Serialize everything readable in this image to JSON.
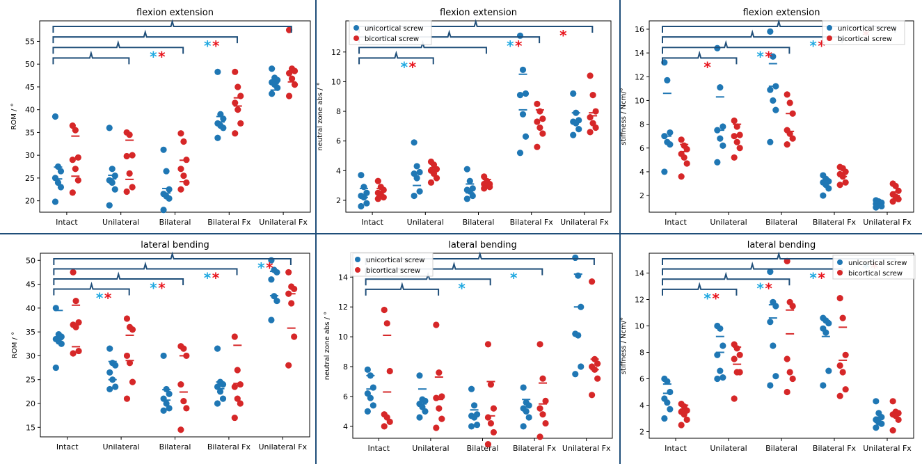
{
  "colors": {
    "unicortical": "#1f77b4",
    "bicortical": "#d62728",
    "star_cyan": "#1fa8e0",
    "star_red": "#e8141c",
    "bracket": "#1f4e79",
    "divider": "#1f4e79"
  },
  "chart_data": [
    {
      "type": "scatter",
      "title": "flexion extension",
      "ylabel": "ROM / °",
      "categories": [
        "Intact",
        "Unilateral",
        "Bilateral",
        "Bilateral Fx",
        "Unilateral Fx"
      ],
      "ylim": [
        17.5,
        59.5
      ],
      "yticks": [
        20,
        25,
        30,
        35,
        40,
        45,
        50,
        55
      ],
      "show_legend": false,
      "series": [
        {
          "name": "unicortical screw",
          "points": [
            [
              38.5,
              27.5,
              26.5,
              25,
              24,
              23,
              19.8
            ],
            [
              36,
              27,
              25.5,
              24.5,
              24,
              22.5,
              19
            ],
            [
              31.2,
              26.5,
              22.5,
              21.5,
              21,
              20.5,
              18
            ],
            [
              48.3,
              39,
              38,
              37,
              36.5,
              36,
              33.8
            ],
            [
              49,
              47,
              46.5,
              46,
              45.5,
              44.8,
              43.5
            ]
          ],
          "mean": [
            24.8,
            24.8,
            21.7,
            37.3,
            44.3
          ],
          "median": [
            27.4,
            25.6,
            22.7,
            38.5,
            45.7
          ]
        },
        {
          "name": "bicortical screw",
          "points": [
            [
              36.5,
              35.5,
              29.5,
              29,
              27,
              24.5,
              21.8
            ],
            [
              35,
              34.5,
              30,
              29.8,
              26,
              23,
              22
            ],
            [
              34.8,
              33,
              29,
              27,
              25.5,
              24,
              22.5
            ],
            [
              48.3,
              45,
              43,
              41.5,
              40,
              37,
              34.8
            ],
            [
              57.5,
              49,
              48.5,
              48,
              46.8,
              45.5,
              43
            ]
          ],
          "mean": [
            25.4,
            24.7,
            24.2,
            42.6,
            48.1
          ],
          "median": [
            34.2,
            33.3,
            28.9,
            40.8,
            46.1
          ]
        }
      ],
      "brackets": [
        {
          "from": 0,
          "to": 1,
          "stars": []
        },
        {
          "from": 0,
          "to": 2,
          "stars": [
            "cyan",
            "red"
          ]
        },
        {
          "from": 0,
          "to": 3,
          "stars": [
            "cyan",
            "red"
          ]
        },
        {
          "from": 0,
          "to": 4,
          "stars": []
        }
      ]
    },
    {
      "type": "scatter",
      "title": "flexion extension",
      "ylabel": "neutral zone abs / °",
      "categories": [
        "Intact",
        "Unilateral",
        "Bilateral",
        "Bilateral Fx",
        "Unilateral Fx"
      ],
      "ylim": [
        1.2,
        14.1
      ],
      "yticks": [
        2,
        4,
        6,
        8,
        10,
        12
      ],
      "show_legend": true,
      "legend": [
        "unicortical screw",
        "bicortical screw"
      ],
      "series": [
        {
          "name": "unicortical screw",
          "points": [
            [
              3.7,
              2.9,
              2.5,
              2.3,
              2.2,
              1.8,
              1.6
            ],
            [
              5.9,
              4.3,
              3.9,
              3.8,
              3.5,
              2.6,
              2.3
            ],
            [
              4.1,
              3.3,
              2.8,
              2.7,
              2.6,
              2.3,
              2.1
            ],
            [
              13.1,
              10.8,
              9.2,
              9.1,
              7.8,
              6.3,
              5.2
            ],
            [
              9.2,
              7.9,
              7.4,
              7.3,
              7.2,
              6.8,
              6.4
            ]
          ],
          "mean": [
            2.2,
            3.0,
            2.5,
            8.1,
            7.4
          ],
          "median": [
            2.8,
            3.8,
            3.1,
            10.5,
            7.9
          ]
        },
        {
          "name": "bicortical screw",
          "points": [
            [
              3.3,
              2.9,
              2.7,
              2.5,
              2.4,
              2.2,
              2.1
            ],
            [
              4.6,
              4.4,
              4.1,
              4.0,
              3.8,
              3.5,
              3.2
            ],
            [
              3.6,
              3.3,
              3.1,
              3.1,
              3.0,
              2.9,
              2.8
            ],
            [
              8.5,
              8.0,
              7.5,
              7.3,
              6.9,
              6.5,
              5.6
            ],
            [
              10.4,
              9.1,
              8.0,
              7.6,
              7.2,
              6.9,
              6.6
            ]
          ],
          "mean": [
            2.6,
            4.0,
            3.1,
            7.4,
            7.7
          ],
          "median": [
            2.8,
            4.2,
            3.4,
            8.1,
            7.9
          ]
        }
      ],
      "brackets": [
        {
          "from": 0,
          "to": 1,
          "stars": [
            "cyan",
            "red"
          ]
        },
        {
          "from": 0,
          "to": 2,
          "stars": []
        },
        {
          "from": 0,
          "to": 3,
          "stars": [
            "cyan",
            "red"
          ]
        },
        {
          "from": 0,
          "to": 4,
          "stars": [
            "red"
          ]
        }
      ]
    },
    {
      "type": "scatter",
      "title": "flexion extension",
      "ylabel": "stiffness / Ncm/°",
      "categories": [
        "Intact",
        "Unilateral",
        "Bilateral",
        "Bilateral Fx",
        "Unilateral Fx"
      ],
      "ylim": [
        0.6,
        16.7
      ],
      "yticks": [
        2,
        4,
        6,
        8,
        10,
        12,
        14,
        16
      ],
      "show_legend": true,
      "legend": [
        "unicortical screw",
        "bicortical screw"
      ],
      "series": [
        {
          "name": "unicortical screw",
          "points": [
            [
              13.2,
              11.7,
              7.3,
              7.0,
              6.5,
              6.3,
              4.0
            ],
            [
              14.4,
              11.1,
              7.8,
              7.5,
              6.8,
              6.2,
              4.8
            ],
            [
              15.8,
              13.7,
              11.2,
              10.9,
              10.0,
              9.2,
              6.5
            ],
            [
              3.7,
              3.4,
              3.2,
              3.1,
              2.9,
              2.6,
              2.0
            ],
            [
              1.6,
              1.5,
              1.4,
              1.3,
              1.2,
              1.1,
              1.0
            ]
          ],
          "mean": [
            10.6,
            10.3,
            13.1,
            3.1,
            1.3
          ],
          "median": [
            7.0,
            7.5,
            11.2,
            3.2,
            1.4
          ]
        },
        {
          "name": "bicortical screw",
          "points": [
            [
              6.7,
              6.2,
              5.9,
              5.5,
              5.2,
              4.7,
              3.6
            ],
            [
              8.3,
              7.8,
              7.1,
              7.0,
              6.5,
              6.0,
              5.2
            ],
            [
              10.5,
              9.8,
              8.9,
              7.5,
              7.2,
              6.8,
              6.3
            ],
            [
              4.4,
              4.3,
              4.0,
              3.8,
              3.6,
              3.1,
              2.9
            ],
            [
              3.0,
              2.8,
              2.4,
              2.1,
              1.9,
              1.7,
              1.5
            ]
          ],
          "mean": [
            5.7,
            7.0,
            7.4,
            3.6,
            2.0
          ],
          "median": [
            6.3,
            8.0,
            8.9,
            3.8,
            2.3
          ]
        }
      ],
      "brackets": [
        {
          "from": 0,
          "to": 1,
          "stars": [
            "red"
          ]
        },
        {
          "from": 0,
          "to": 2,
          "stars": [
            "cyan",
            "red"
          ]
        },
        {
          "from": 0,
          "to": 3,
          "stars": [
            "cyan",
            "red"
          ]
        },
        {
          "from": 0,
          "to": 4,
          "stars": [
            "red"
          ]
        }
      ]
    },
    {
      "type": "scatter",
      "title": "lateral bending",
      "ylabel": "ROM / °",
      "categories": [
        "Intact",
        "Unilateral",
        "Bilateral",
        "Bilateral Fx",
        "Unilateral Fx"
      ],
      "ylim": [
        13,
        51.5
      ],
      "yticks": [
        15,
        20,
        25,
        30,
        35,
        40,
        45,
        50
      ],
      "show_legend": false,
      "series": [
        {
          "name": "unicortical screw",
          "points": [
            [
              40,
              34.5,
              34,
              33.5,
              33,
              32.5,
              27.5
            ],
            [
              31.5,
              28.5,
              28,
              26.5,
              25,
              23.5,
              23
            ],
            [
              30,
              23,
              22,
              21,
              20,
              19,
              18.5
            ],
            [
              31.5,
              24.5,
              24,
              23.5,
              22.5,
              21,
              20
            ],
            [
              50,
              48,
              47.5,
              46,
              42.5,
              41.5,
              37.5
            ]
          ],
          "mean": [
            33.4,
            25.0,
            20.7,
            23.1,
            42.6
          ],
          "median": [
            39.5,
            28.8,
            22.9,
            24.5,
            47.7
          ]
        },
        {
          "name": "bicortical screw",
          "points": [
            [
              47.5,
              41.5,
              37,
              36.5,
              36,
              31,
              30.5
            ],
            [
              37.8,
              36,
              35.5,
              30,
              28.5,
              24.5,
              21
            ],
            [
              32,
              31.5,
              30,
              24,
              20.5,
              19,
              14.5
            ],
            [
              34,
              27,
              24,
              23.5,
              21,
              20,
              17
            ],
            [
              47.5,
              44.5,
              44,
              43,
              41,
              34,
              28
            ]
          ],
          "mean": [
            31.9,
            29.0,
            22.4,
            24.2,
            43.0
          ],
          "median": [
            40.6,
            34.3,
            30.0,
            32.2,
            35.8
          ]
        }
      ],
      "brackets": [
        {
          "from": 0,
          "to": 1,
          "stars": [
            "cyan",
            "red"
          ]
        },
        {
          "from": 0,
          "to": 2,
          "stars": [
            "cyan",
            "red"
          ]
        },
        {
          "from": 0,
          "to": 3,
          "stars": [
            "cyan",
            "red"
          ]
        },
        {
          "from": 0,
          "to": 4,
          "stars": [
            "cyan",
            "red"
          ]
        }
      ]
    },
    {
      "type": "scatter",
      "title": "lateral bending",
      "ylabel": "neutral zone abs / °",
      "categories": [
        "Intact",
        "Unilateral",
        "Bilateral",
        "Bilateral Fx",
        "Unilateral Fx"
      ],
      "ylim": [
        3.2,
        15.6
      ],
      "yticks": [
        4,
        6,
        8,
        10,
        12,
        14
      ],
      "show_legend": true,
      "legend": [
        "unicortical screw",
        "bicortical screw"
      ],
      "series": [
        {
          "name": "unicortical screw",
          "points": [
            [
              7.8,
              7.4,
              6.6,
              6.2,
              5.9,
              5.4,
              5.0
            ],
            [
              7.4,
              5.8,
              5.7,
              5.5,
              5.3,
              5.0,
              4.6
            ],
            [
              6.5,
              5.4,
              4.8,
              4.7,
              4.6,
              4.1,
              4.0
            ],
            [
              6.6,
              5.6,
              5.4,
              5.2,
              5.0,
              4.6,
              4.0
            ],
            [
              15.3,
              14.1,
              12.0,
              10.2,
              10.1,
              8.0,
              7.5
            ]
          ],
          "mean": [
            6.5,
            5.5,
            4.7,
            5.3,
            12.0
          ],
          "median": [
            7.4,
            6.5,
            5.1,
            5.8,
            14.2
          ]
        },
        {
          "name": "bicortical screw",
          "points": [
            [
              11.8,
              10.9,
              7.7,
              4.8,
              4.6,
              4.3,
              4.0
            ],
            [
              10.8,
              7.6,
              6.0,
              5.9,
              5.2,
              4.5,
              3.9
            ],
            [
              9.5,
              6.8,
              5.2,
              4.6,
              4.2,
              3.6,
              2.8
            ],
            [
              9.5,
              7.2,
              5.7,
              5.2,
              4.8,
              4.2,
              3.3
            ],
            [
              13.7,
              8.5,
              8.2,
              8.0,
              7.8,
              7.2,
              6.1
            ]
          ],
          "mean": [
            6.3,
            5.8,
            4.7,
            5.5,
            7.8
          ],
          "median": [
            10.1,
            7.3,
            7.0,
            6.9,
            8.5
          ]
        }
      ],
      "brackets": [
        {
          "from": 0,
          "to": 1,
          "stars": []
        },
        {
          "from": 0,
          "to": 2,
          "stars": [
            "cyan"
          ]
        },
        {
          "from": 0,
          "to": 3,
          "stars": [
            "cyan"
          ]
        },
        {
          "from": 0,
          "to": 4,
          "stars": []
        }
      ]
    },
    {
      "type": "scatter",
      "title": "lateral bending",
      "ylabel": "stiffness / Ncm/°",
      "categories": [
        "Intact",
        "Unilateral",
        "Bilateral",
        "Bilateral Fx",
        "Unilateral Fx"
      ],
      "ylim": [
        1.5,
        15.5
      ],
      "yticks": [
        2,
        4,
        6,
        8,
        10,
        12,
        14
      ],
      "show_legend": true,
      "legend": [
        "unicortical screw",
        "bicortical screw"
      ],
      "series": [
        {
          "name": "unicortical screw",
          "points": [
            [
              6.0,
              5.8,
              5.0,
              4.5,
              4.2,
              3.7,
              3.0
            ],
            [
              10.0,
              9.8,
              8.5,
              7.8,
              6.6,
              6.1,
              6.0
            ],
            [
              14.1,
              11.8,
              11.5,
              10.3,
              8.5,
              6.2,
              5.5
            ],
            [
              10.6,
              10.4,
              10.2,
              9.8,
              9.5,
              6.6,
              5.5
            ],
            [
              4.3,
              3.4,
              3.1,
              2.9,
              2.7,
              2.6,
              2.3
            ]
          ],
          "mean": [
            4.9,
            8.0,
            10.6,
            9.2,
            2.7
          ],
          "median": [
            5.6,
            9.2,
            11.6,
            10.4,
            3.1
          ]
        },
        {
          "name": "bicortical screw",
          "points": [
            [
              4.1,
              3.9,
              3.6,
              3.5,
              3.3,
              2.9,
              2.5
            ],
            [
              8.6,
              8.3,
              7.8,
              7.5,
              6.5,
              6.5,
              4.5
            ],
            [
              14.9,
              11.8,
              11.5,
              7.5,
              6.5,
              6.0,
              5.0
            ],
            [
              12.1,
              10.6,
              7.8,
              7.0,
              6.5,
              5.2,
              4.7
            ],
            [
              4.3,
              3.5,
              3.4,
              3.3,
              3.2,
              2.9,
              2.1
            ]
          ],
          "mean": [
            3.7,
            7.1,
            9.4,
            7.4,
            3.3
          ],
          "median": [
            4.0,
            8.4,
            11.2,
            9.9,
            3.4
          ]
        }
      ],
      "brackets": [
        {
          "from": 0,
          "to": 1,
          "stars": [
            "cyan",
            "red"
          ]
        },
        {
          "from": 0,
          "to": 2,
          "stars": [
            "cyan",
            "red"
          ]
        },
        {
          "from": 0,
          "to": 3,
          "stars": [
            "cyan",
            "red"
          ]
        },
        {
          "from": 0,
          "to": 4,
          "stars": [
            "cyan",
            "red"
          ]
        }
      ]
    }
  ]
}
